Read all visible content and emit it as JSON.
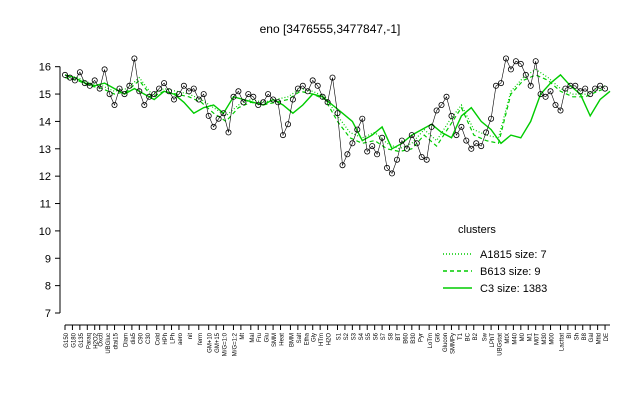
{
  "chart_data": {
    "type": "line",
    "title": "eno [3476555,3477847,-1]",
    "xlabel": "",
    "ylabel": "",
    "ylim": [
      7,
      16.5
    ],
    "y_ticks": [
      7,
      8,
      9,
      10,
      11,
      12,
      13,
      14,
      15,
      16
    ],
    "grid": false,
    "legend_position": "right",
    "legend_title": "clusters",
    "x_tick_labels": [
      "G150",
      "G180",
      "G135",
      "Paraq",
      "H2O2",
      "Oxctl",
      "UBGluc",
      "dtai15",
      "Diam",
      "dia5",
      "C90",
      "C30",
      "Cold",
      "HPh",
      "LPh",
      "aero",
      "nit",
      "ferm",
      "GM+10",
      "GM+15",
      "M/G=1:0",
      "M/G=1:2",
      "Mt",
      "Mal",
      "Fru",
      "Glu",
      "SMM",
      "Heat",
      "BMM",
      "Salt",
      "Etha",
      "Gly",
      "HTm",
      "H2O",
      "S1",
      "S2",
      "S3",
      "S4",
      "S5",
      "S6",
      "S7",
      "S8",
      "BT",
      "B60",
      "B30",
      "Pyr",
      "LoTm",
      "Gl6",
      "Glucon",
      "SMMPy",
      "T1",
      "BC",
      "B2",
      "Sw",
      "LPhT",
      "UBGstat",
      "MtX",
      "M40",
      "M0",
      "M1",
      "M0T",
      "M30",
      "M00",
      "Lacttat",
      "BI",
      "Sh",
      "B8",
      "Gal",
      "Mtld",
      "DE"
    ],
    "x_tick_ranks": [
      0,
      3,
      6,
      9,
      12,
      14,
      17,
      20,
      24,
      27,
      30,
      33,
      37,
      40,
      43,
      46,
      50,
      54,
      58,
      61,
      64,
      68,
      71,
      75,
      78,
      81,
      84,
      87,
      91,
      94,
      97,
      100,
      103,
      106,
      110,
      113,
      116,
      119,
      122,
      125,
      128,
      131,
      134,
      137,
      140,
      143,
      147,
      150,
      153,
      156,
      159,
      162,
      165,
      169,
      172,
      175,
      178,
      181,
      184,
      187,
      190,
      193,
      196,
      200,
      203,
      206,
      209,
      212,
      215,
      218
    ],
    "x_max_rank": 220,
    "series": [
      {
        "name": "A1815 size: 7",
        "style": "dotted",
        "color": "#00cc00",
        "values": [
          [
            0,
            15.7
          ],
          [
            5,
            15.6
          ],
          [
            10,
            15.4
          ],
          [
            15,
            15.3
          ],
          [
            20,
            15.1
          ],
          [
            25,
            15.2
          ],
          [
            30,
            15.6
          ],
          [
            35,
            15.0
          ],
          [
            40,
            15.2
          ],
          [
            45,
            15.1
          ],
          [
            50,
            15.0
          ],
          [
            55,
            14.8
          ],
          [
            60,
            14.5
          ],
          [
            65,
            14.2
          ],
          [
            70,
            14.6
          ],
          [
            75,
            14.8
          ],
          [
            80,
            14.7
          ],
          [
            85,
            14.8
          ],
          [
            90,
            14.9
          ],
          [
            95,
            15.2
          ],
          [
            100,
            15.1
          ],
          [
            105,
            14.9
          ],
          [
            110,
            14.2
          ],
          [
            115,
            13.6
          ],
          [
            120,
            13.4
          ],
          [
            125,
            13.6
          ],
          [
            130,
            13.2
          ],
          [
            135,
            13.0
          ],
          [
            140,
            13.2
          ],
          [
            145,
            13.7
          ],
          [
            150,
            13.3
          ],
          [
            155,
            14.0
          ],
          [
            160,
            14.6
          ],
          [
            165,
            13.7
          ],
          [
            170,
            13.5
          ],
          [
            175,
            13.4
          ],
          [
            180,
            15.1
          ],
          [
            185,
            15.6
          ],
          [
            190,
            15.9
          ],
          [
            195,
            15.6
          ],
          [
            200,
            15.2
          ],
          [
            205,
            15.0
          ],
          [
            210,
            15.0
          ],
          [
            215,
            15.2
          ],
          [
            218,
            15.3
          ]
        ]
      },
      {
        "name": "B613 size: 9",
        "style": "dashed",
        "color": "#00cc00",
        "values": [
          [
            0,
            15.6
          ],
          [
            5,
            15.5
          ],
          [
            10,
            15.3
          ],
          [
            15,
            15.2
          ],
          [
            20,
            15.0
          ],
          [
            25,
            15.1
          ],
          [
            30,
            15.5
          ],
          [
            35,
            14.9
          ],
          [
            40,
            15.1
          ],
          [
            45,
            15.0
          ],
          [
            50,
            14.9
          ],
          [
            55,
            14.7
          ],
          [
            60,
            14.3
          ],
          [
            65,
            14.0
          ],
          [
            70,
            14.5
          ],
          [
            75,
            14.7
          ],
          [
            80,
            14.6
          ],
          [
            85,
            14.7
          ],
          [
            90,
            14.8
          ],
          [
            95,
            15.1
          ],
          [
            100,
            15.0
          ],
          [
            105,
            14.8
          ],
          [
            110,
            14.0
          ],
          [
            115,
            13.4
          ],
          [
            120,
            13.2
          ],
          [
            125,
            13.3
          ],
          [
            130,
            13.0
          ],
          [
            135,
            12.9
          ],
          [
            140,
            13.0
          ],
          [
            145,
            13.5
          ],
          [
            150,
            13.1
          ],
          [
            155,
            13.8
          ],
          [
            160,
            14.5
          ],
          [
            165,
            13.5
          ],
          [
            170,
            13.3
          ],
          [
            175,
            13.2
          ],
          [
            180,
            15.0
          ],
          [
            185,
            15.5
          ],
          [
            190,
            15.7
          ],
          [
            195,
            15.5
          ],
          [
            200,
            15.1
          ],
          [
            205,
            14.9
          ],
          [
            210,
            14.9
          ],
          [
            215,
            15.1
          ],
          [
            218,
            15.2
          ]
        ]
      },
      {
        "name": "C3 size: 1383",
        "style": "solid",
        "color": "#00cc00",
        "values": [
          [
            0,
            15.7
          ],
          [
            4,
            15.6
          ],
          [
            8,
            15.4
          ],
          [
            12,
            15.3
          ],
          [
            16,
            15.4
          ],
          [
            20,
            15.2
          ],
          [
            24,
            15.0
          ],
          [
            28,
            15.2
          ],
          [
            32,
            15.0
          ],
          [
            36,
            14.8
          ],
          [
            40,
            15.1
          ],
          [
            44,
            15.0
          ],
          [
            48,
            14.7
          ],
          [
            52,
            14.3
          ],
          [
            56,
            14.5
          ],
          [
            60,
            14.6
          ],
          [
            64,
            14.3
          ],
          [
            68,
            14.9
          ],
          [
            72,
            14.8
          ],
          [
            76,
            14.7
          ],
          [
            80,
            14.6
          ],
          [
            84,
            14.8
          ],
          [
            88,
            14.6
          ],
          [
            92,
            14.3
          ],
          [
            96,
            14.6
          ],
          [
            100,
            15.0
          ],
          [
            104,
            14.9
          ],
          [
            108,
            14.6
          ],
          [
            112,
            14.3
          ],
          [
            116,
            14.0
          ],
          [
            120,
            13.3
          ],
          [
            124,
            13.5
          ],
          [
            128,
            13.8
          ],
          [
            132,
            13.0
          ],
          [
            136,
            13.2
          ],
          [
            140,
            13.5
          ],
          [
            144,
            13.7
          ],
          [
            148,
            13.9
          ],
          [
            152,
            13.6
          ],
          [
            156,
            13.4
          ],
          [
            160,
            14.2
          ],
          [
            164,
            14.5
          ],
          [
            168,
            14.0
          ],
          [
            172,
            13.7
          ],
          [
            176,
            13.2
          ],
          [
            180,
            13.5
          ],
          [
            184,
            13.4
          ],
          [
            188,
            14.0
          ],
          [
            192,
            15.0
          ],
          [
            196,
            15.4
          ],
          [
            200,
            15.7
          ],
          [
            204,
            15.3
          ],
          [
            208,
            15.0
          ],
          [
            212,
            14.2
          ],
          [
            216,
            14.8
          ],
          [
            220,
            15.1
          ]
        ]
      }
    ],
    "points": [
      [
        0,
        15.7
      ],
      [
        2,
        15.6
      ],
      [
        4,
        15.5
      ],
      [
        6,
        15.8
      ],
      [
        8,
        15.4
      ],
      [
        10,
        15.3
      ],
      [
        12,
        15.5
      ],
      [
        14,
        15.2
      ],
      [
        16,
        15.9
      ],
      [
        18,
        15.0
      ],
      [
        20,
        14.6
      ],
      [
        22,
        15.2
      ],
      [
        24,
        15.0
      ],
      [
        26,
        15.3
      ],
      [
        28,
        16.3
      ],
      [
        30,
        15.1
      ],
      [
        32,
        14.6
      ],
      [
        34,
        14.9
      ],
      [
        36,
        15.0
      ],
      [
        38,
        15.2
      ],
      [
        40,
        15.4
      ],
      [
        42,
        15.1
      ],
      [
        44,
        14.8
      ],
      [
        46,
        15.0
      ],
      [
        48,
        15.3
      ],
      [
        50,
        15.1
      ],
      [
        52,
        15.2
      ],
      [
        54,
        14.8
      ],
      [
        56,
        15.0
      ],
      [
        58,
        14.2
      ],
      [
        60,
        13.8
      ],
      [
        62,
        14.1
      ],
      [
        64,
        14.3
      ],
      [
        66,
        13.6
      ],
      [
        68,
        14.9
      ],
      [
        70,
        15.1
      ],
      [
        72,
        14.7
      ],
      [
        74,
        15.0
      ],
      [
        76,
        14.9
      ],
      [
        78,
        14.6
      ],
      [
        80,
        14.7
      ],
      [
        82,
        15.0
      ],
      [
        84,
        14.8
      ],
      [
        86,
        14.7
      ],
      [
        88,
        13.5
      ],
      [
        90,
        13.9
      ],
      [
        92,
        14.8
      ],
      [
        94,
        15.2
      ],
      [
        96,
        15.3
      ],
      [
        98,
        15.1
      ],
      [
        100,
        15.5
      ],
      [
        102,
        15.3
      ],
      [
        104,
        14.9
      ],
      [
        106,
        14.7
      ],
      [
        108,
        15.6
      ],
      [
        110,
        14.3
      ],
      [
        112,
        12.4
      ],
      [
        114,
        12.8
      ],
      [
        116,
        13.2
      ],
      [
        118,
        13.7
      ],
      [
        120,
        14.1
      ],
      [
        122,
        12.9
      ],
      [
        124,
        13.1
      ],
      [
        126,
        12.8
      ],
      [
        128,
        13.4
      ],
      [
        130,
        12.3
      ],
      [
        132,
        12.1
      ],
      [
        134,
        12.6
      ],
      [
        136,
        13.3
      ],
      [
        138,
        13.0
      ],
      [
        140,
        13.5
      ],
      [
        142,
        13.2
      ],
      [
        144,
        12.7
      ],
      [
        146,
        12.6
      ],
      [
        148,
        13.8
      ],
      [
        150,
        14.4
      ],
      [
        152,
        14.6
      ],
      [
        154,
        14.9
      ],
      [
        156,
        14.2
      ],
      [
        158,
        13.5
      ],
      [
        160,
        13.8
      ],
      [
        162,
        13.3
      ],
      [
        164,
        13.0
      ],
      [
        166,
        13.2
      ],
      [
        168,
        13.1
      ],
      [
        170,
        13.6
      ],
      [
        172,
        14.1
      ],
      [
        174,
        15.3
      ],
      [
        176,
        15.4
      ],
      [
        178,
        16.3
      ],
      [
        180,
        15.9
      ],
      [
        182,
        16.2
      ],
      [
        184,
        16.1
      ],
      [
        186,
        15.7
      ],
      [
        188,
        15.3
      ],
      [
        190,
        16.2
      ],
      [
        192,
        15.0
      ],
      [
        194,
        14.9
      ],
      [
        196,
        15.1
      ],
      [
        198,
        14.6
      ],
      [
        200,
        14.4
      ],
      [
        202,
        15.2
      ],
      [
        204,
        15.3
      ],
      [
        206,
        15.3
      ],
      [
        208,
        15.1
      ],
      [
        210,
        15.2
      ],
      [
        212,
        15.0
      ],
      [
        214,
        15.2
      ],
      [
        216,
        15.3
      ],
      [
        218,
        15.2
      ]
    ],
    "colors": {
      "cluster_line": "#00cc00",
      "points": "#000000",
      "axis": "#000000"
    }
  }
}
